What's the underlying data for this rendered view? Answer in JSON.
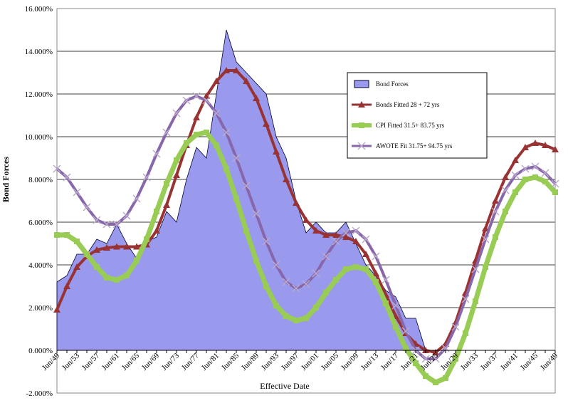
{
  "chart_data": {
    "type": "line",
    "y_label": "Bond Forces",
    "x_label": "Effective Date",
    "categories": [
      "Jun/49",
      null,
      "Jun/53",
      null,
      "Jun/57",
      null,
      "Jun/61",
      null,
      "Jun/65",
      null,
      "Jun/69",
      null,
      "Jun/73",
      null,
      "Jun/77",
      null,
      "Jun/81",
      null,
      "Jun/85",
      null,
      "Jun/89",
      null,
      "Jun/93",
      null,
      "Jun/97",
      null,
      "Jun/01",
      null,
      "Jun/05",
      null,
      "Jun/09",
      null,
      "Jun/13",
      null,
      "Jun/17",
      null,
      "Jun/21",
      null,
      "Jun/25",
      null,
      "Jun/29",
      null,
      "Jun/33",
      null,
      "Jun/37",
      null,
      "Jun/41",
      null,
      "Jun/45",
      null,
      "Jun/49"
    ],
    "series": [
      {
        "name": "Bond Forces",
        "kind": "area",
        "color": "#9999ee",
        "values": [
          3.2,
          3.5,
          4.5,
          4.5,
          5.2,
          5.0,
          5.9,
          5.0,
          4.3,
          5.1,
          5.3,
          6.5,
          6.0,
          8.0,
          9.5,
          9.0,
          12.0,
          15.0,
          13.5,
          13.0,
          12.5,
          12.0,
          10.0,
          9.0,
          7.0,
          5.5,
          6.0,
          5.5,
          5.5,
          6.0,
          5.0,
          4.0,
          3.5,
          2.8,
          2.5,
          1.5,
          1.5,
          0.0,
          null,
          null,
          null,
          null,
          null,
          null,
          null,
          null,
          null,
          null,
          null,
          null,
          null
        ]
      },
      {
        "name": "Bonds Fitted 28 + 72 yrs",
        "kind": "triangle",
        "color": "#993333",
        "values": [
          1.9,
          3.0,
          3.9,
          4.4,
          4.7,
          4.8,
          4.85,
          4.85,
          4.85,
          4.95,
          5.6,
          6.8,
          8.2,
          9.6,
          10.9,
          11.9,
          12.6,
          13.1,
          13.1,
          12.6,
          11.8,
          10.6,
          9.3,
          8.0,
          6.9,
          6.1,
          5.6,
          5.4,
          5.4,
          5.3,
          5.1,
          4.5,
          3.6,
          2.6,
          1.6,
          0.8,
          0.3,
          0.0,
          -0.1,
          0.3,
          1.3,
          2.7,
          4.2,
          5.7,
          7.0,
          8.1,
          8.9,
          9.5,
          9.7,
          9.6,
          9.4
        ]
      },
      {
        "name": "CPI Fitted  31.5+ 83.75 yrs",
        "kind": "square",
        "color": "#99cc55",
        "values": [
          5.4,
          5.4,
          5.1,
          4.5,
          3.9,
          3.4,
          3.3,
          3.5,
          4.2,
          5.2,
          6.5,
          7.8,
          8.9,
          9.7,
          10.1,
          10.2,
          9.6,
          8.5,
          7.1,
          5.6,
          4.2,
          3.0,
          2.1,
          1.6,
          1.4,
          1.5,
          2.0,
          2.7,
          3.3,
          3.8,
          3.9,
          3.8,
          3.2,
          2.2,
          1.1,
          0.1,
          -0.6,
          -1.2,
          -1.5,
          -1.3,
          -0.4,
          0.8,
          2.3,
          3.9,
          5.3,
          6.5,
          7.4,
          8.0,
          8.1,
          7.9,
          7.4
        ]
      },
      {
        "name": "AWOTE Fit 31.75+ 94.75 yrs",
        "kind": "cross",
        "color": "#8866aa",
        "values": [
          8.5,
          8.1,
          7.4,
          6.7,
          6.1,
          5.9,
          5.9,
          6.3,
          7.1,
          8.1,
          9.2,
          10.2,
          11.1,
          11.7,
          11.9,
          11.7,
          11.1,
          10.2,
          9.0,
          7.7,
          6.4,
          5.1,
          4.0,
          3.2,
          2.9,
          3.1,
          3.6,
          4.4,
          5.1,
          5.5,
          5.6,
          5.2,
          4.4,
          3.3,
          2.1,
          0.9,
          0.0,
          -0.4,
          -0.4,
          0.1,
          1.1,
          2.4,
          3.8,
          5.2,
          6.5,
          7.5,
          8.2,
          8.5,
          8.6,
          8.3,
          7.8
        ]
      }
    ],
    "ylim": [
      -2,
      16
    ],
    "yticks": [
      {
        "value": -2,
        "label": "-2.000%"
      },
      {
        "value": 0,
        "label": "0.000%"
      },
      {
        "value": 2,
        "label": "2.000%"
      },
      {
        "value": 4,
        "label": "4.000%"
      },
      {
        "value": 6,
        "label": "6.000%"
      },
      {
        "value": 8,
        "label": "8.000%"
      },
      {
        "value": 10,
        "label": "10.000%"
      },
      {
        "value": 12,
        "label": "12.000%"
      },
      {
        "value": 14,
        "label": "14.000%"
      },
      {
        "value": 16,
        "label": "16.000%"
      }
    ],
    "grid": true,
    "legend": "upper right"
  }
}
